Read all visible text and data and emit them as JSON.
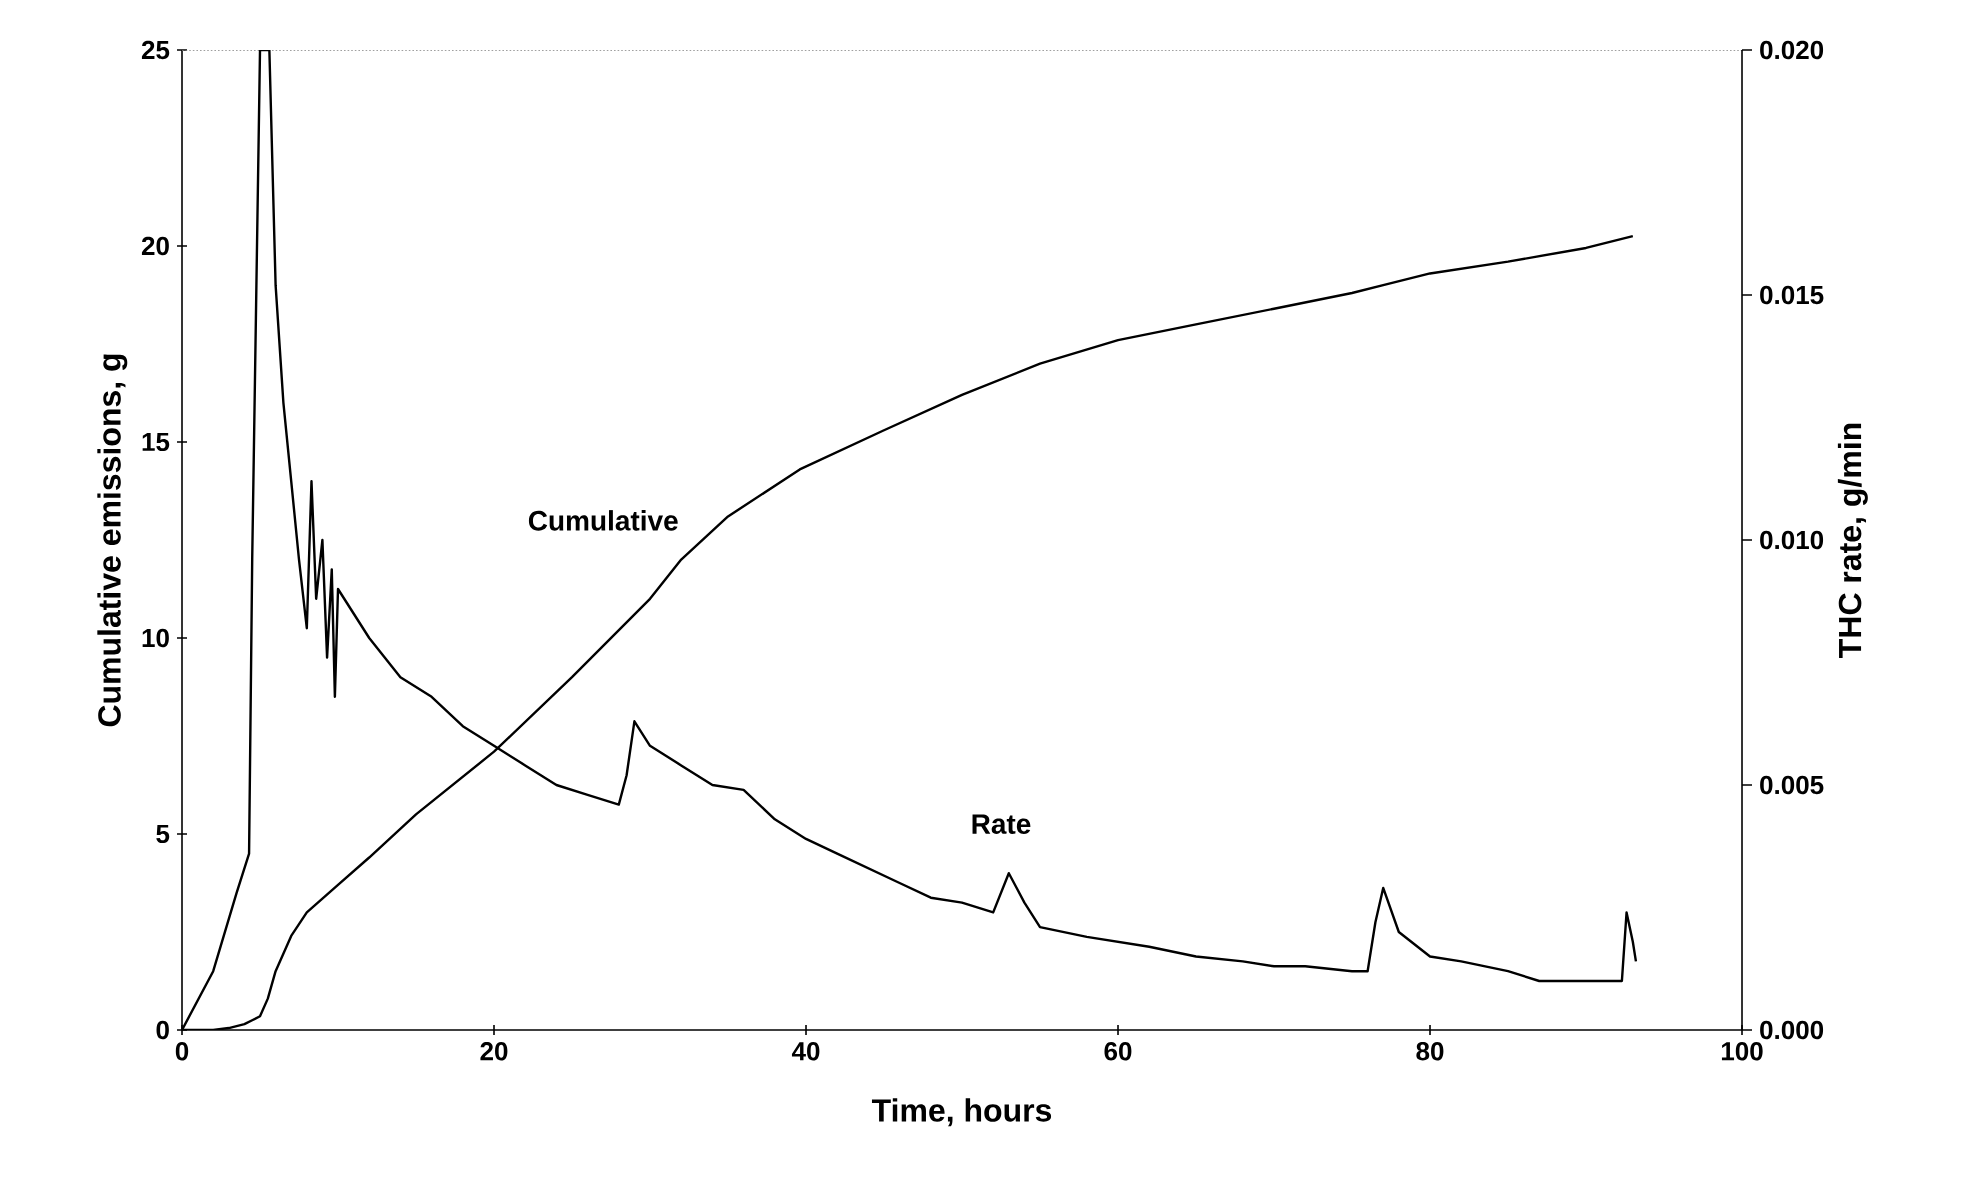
{
  "chart_data": {
    "type": "line",
    "xlabel": "Time, hours",
    "ylabel": "Cumulative emissions, g",
    "y2label": "THC rate, g/min",
    "xlim": [
      0,
      100
    ],
    "xticks": [
      0,
      20,
      40,
      60,
      80,
      100
    ],
    "ylim": [
      0,
      25
    ],
    "yticks": [
      0,
      5,
      10,
      15,
      20,
      25
    ],
    "y2lim": [
      0,
      0.02
    ],
    "y2ticks": [
      {
        "value": 0,
        "label": "0.000"
      },
      {
        "value": 0.005,
        "label": "0.005"
      },
      {
        "value": 0.01,
        "label": "0.010"
      },
      {
        "value": 0.015,
        "label": "0.015"
      },
      {
        "value": 0.02,
        "label": "0.020"
      }
    ],
    "grid": false,
    "marker": "none",
    "line_style": "solid",
    "series": [
      {
        "name": "Cumulative",
        "color": "#000000",
        "x": [
          0,
          2,
          3,
          4,
          4.5,
          5,
          5.5,
          6,
          7,
          8,
          10,
          12,
          15,
          20,
          25,
          30,
          32,
          35,
          39.6,
          45,
          50,
          55,
          60,
          65,
          70,
          75,
          77,
          80,
          85,
          90,
          93
        ],
        "values": [
          0,
          0,
          0.05,
          0.15,
          0.25,
          0.35,
          0.8,
          1.5,
          2.4,
          3.0,
          3.7,
          4.4,
          5.5,
          7.1,
          9.0,
          11.0,
          12.0,
          13.1,
          14.3,
          15.3,
          16.2,
          17.0,
          17.6,
          18.0,
          18.4,
          18.8,
          19.0,
          19.3,
          19.6,
          19.95,
          20.25
        ]
      },
      {
        "name": "Rate",
        "color": "#000000",
        "axis": "y2",
        "x": [
          0,
          2,
          3.5,
          4.3,
          4.5,
          5,
          5.6,
          6,
          6.5,
          7,
          7.5,
          8,
          8.3,
          8.6,
          9,
          9.3,
          9.6,
          9.8,
          10,
          12,
          14,
          16,
          18,
          20,
          22,
          24,
          26,
          28,
          28.5,
          29,
          30,
          32,
          34,
          36,
          38,
          40,
          42,
          44,
          46,
          48,
          50,
          52,
          53,
          54,
          55,
          58,
          60,
          62,
          65,
          68,
          70,
          72,
          75,
          76,
          76.5,
          77,
          78,
          80,
          82,
          85,
          87,
          90,
          92.3,
          92.6,
          93,
          93.2
        ],
        "values": [
          0,
          0.0012,
          0.0028,
          0.0036,
          0.0096,
          0.02,
          0.02,
          0.0152,
          0.0128,
          0.0112,
          0.0096,
          0.0082,
          0.0112,
          0.0088,
          0.01,
          0.0076,
          0.0094,
          0.0068,
          0.009,
          0.008,
          0.0072,
          0.0068,
          0.0062,
          0.0058,
          0.0054,
          0.005,
          0.0048,
          0.0046,
          0.0052,
          0.0063,
          0.0058,
          0.0054,
          0.005,
          0.0049,
          0.0043,
          0.0039,
          0.0036,
          0.0033,
          0.003,
          0.0027,
          0.0026,
          0.0024,
          0.0032,
          0.0026,
          0.0021,
          0.0019,
          0.0018,
          0.0017,
          0.0015,
          0.0014,
          0.0013,
          0.0013,
          0.0012,
          0.0012,
          0.0022,
          0.0029,
          0.002,
          0.0015,
          0.0014,
          0.0012,
          0.001,
          0.001,
          0.001,
          0.0024,
          0.0018,
          0.0014
        ]
      }
    ]
  }
}
